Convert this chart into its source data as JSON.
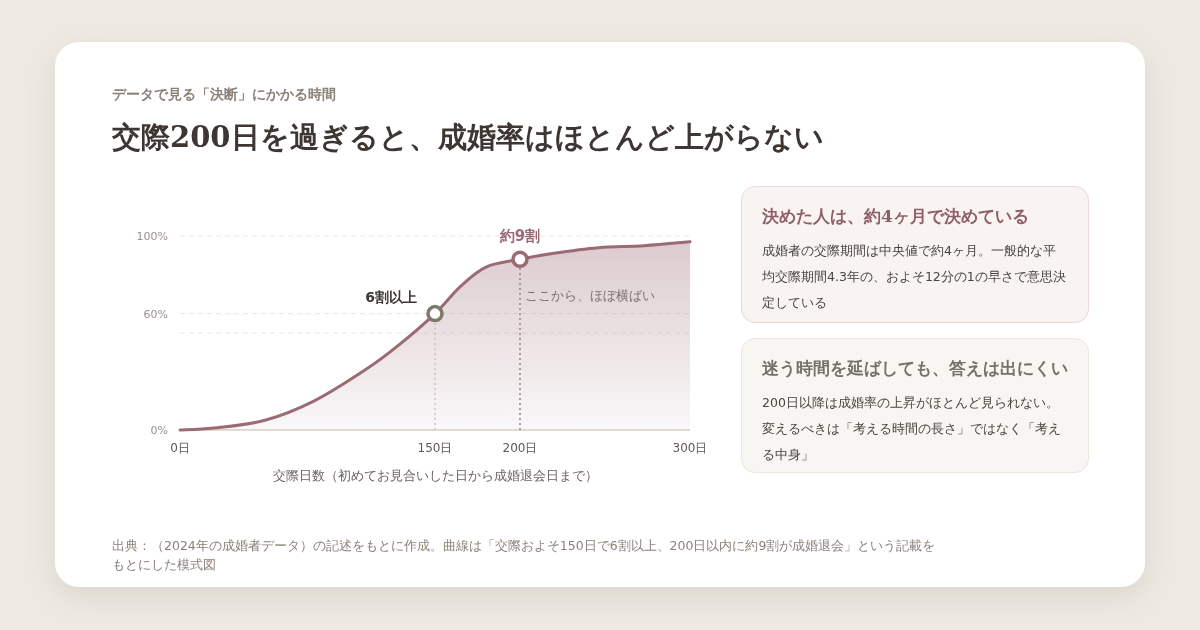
{
  "chart_data": {
    "type": "area",
    "subtitle": "データで見る「決断」にかかる時間",
    "title": "交際200日を過ぎると、成婚率はほとんど上がらない",
    "xlabel": "交際日数（初めてお見合いした日から成婚退会日まで）",
    "x": [
      0,
      20,
      50,
      79,
      109,
      129,
      150,
      165,
      180,
      200,
      219,
      246,
      273,
      300
    ],
    "series": [
      {
        "color": "#9b6b73",
        "values": [
          0,
          1,
          5,
          15,
          31,
          44,
          60,
          74,
          84,
          88,
          91,
          94,
          95,
          97
        ]
      }
    ],
    "xlim": [
      0,
      300
    ],
    "xticks": [
      {
        "value": 0,
        "label": "0日"
      },
      {
        "value": 150,
        "label": "150日"
      },
      {
        "value": 200,
        "label": "200日"
      },
      {
        "value": 300,
        "label": "300日"
      }
    ],
    "ylim": [
      0,
      100
    ],
    "yticks": [
      {
        "value": 0,
        "label": "0%"
      },
      {
        "value": 50,
        "label": null
      },
      {
        "value": 60,
        "label": "60%"
      },
      {
        "value": 100,
        "label": "100%"
      }
    ],
    "grid": "y",
    "ref_lines": [
      {
        "axis": "x",
        "value": 150,
        "color": "#cfc2b8",
        "line_style": "dotted"
      },
      {
        "axis": "x",
        "value": 200,
        "color": "#9b7f86",
        "line_style": "dotted"
      }
    ],
    "annotations": [
      {
        "text": "6割以上",
        "x": 150,
        "y": 60
      },
      {
        "text": "約9割",
        "x": 200,
        "y": 88
      },
      "ここから、ほぼ横ばい",
      "決めた人は、約4ヶ月で決めている",
      "成婚者の交際期間は中央値で約4ヶ月。一般的な平均交際期間4.3年の、およそ12分の1の早さで意思決定している",
      "迷う時間を延ばしても、答えは出にくい",
      "200日以降は成婚率の上昇がほとんど見られない。変えるべきは「考える時間の長さ」ではなく「考える中身」",
      "出典：（2024年の成婚者データ）の記述をもとに作成。曲線は「交際およそ150日で6割以上、200日以内に約9割が成婚退会」という記載をもとにした模式図"
    ]
  }
}
